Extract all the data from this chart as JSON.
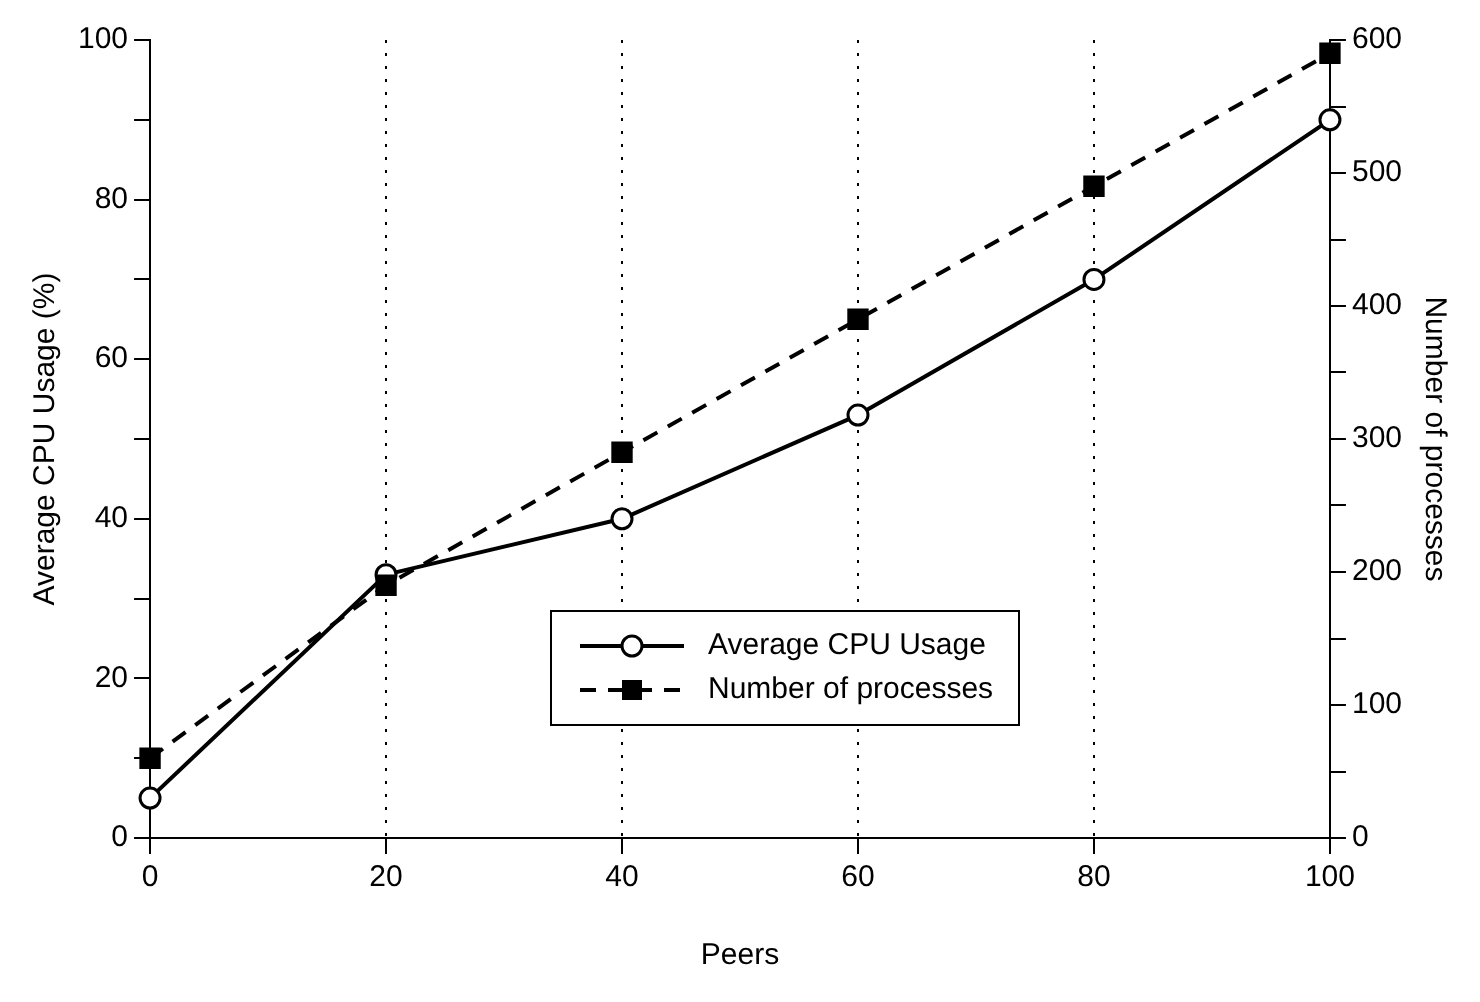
{
  "chart_data": {
    "type": "line",
    "xlabel": "Peers",
    "ylabel": "Average CPU Usage (%)",
    "y2label": "Number of processes",
    "x": [
      0,
      20,
      40,
      60,
      80,
      100
    ],
    "xlim": [
      0,
      100
    ],
    "xticks": [
      0,
      20,
      40,
      60,
      80,
      100
    ],
    "ylim": [
      0,
      100
    ],
    "yticks": [
      0,
      {
        "value": 10,
        "label": null
      },
      20,
      {
        "value": 30,
        "label": null
      },
      40,
      {
        "value": 50,
        "label": null
      },
      60,
      {
        "value": 70,
        "label": null
      },
      80,
      {
        "value": 90,
        "label": null
      },
      100
    ],
    "y2lim": [
      0,
      600
    ],
    "y2ticks": [
      0,
      {
        "value": 50,
        "label": null
      },
      100,
      {
        "value": 150,
        "label": null
      },
      200,
      {
        "value": 250,
        "label": null
      },
      300,
      {
        "value": 350,
        "label": null
      },
      400,
      {
        "value": 450,
        "label": null
      },
      500,
      {
        "value": 550,
        "label": null
      },
      600
    ],
    "series": [
      {
        "name": "Average CPU Usage",
        "color": "#000000",
        "values": [
          5,
          33,
          40,
          53,
          70,
          90
        ],
        "marker": "circle",
        "line_style": "solid"
      },
      {
        "name": "Number of processes",
        "color": "#000000",
        "values": [
          60,
          190,
          290,
          390,
          490,
          590
        ],
        "axis": "y2",
        "marker": "square",
        "line_style": "dashed"
      }
    ],
    "grid": "x",
    "legend": "bottom right"
  }
}
